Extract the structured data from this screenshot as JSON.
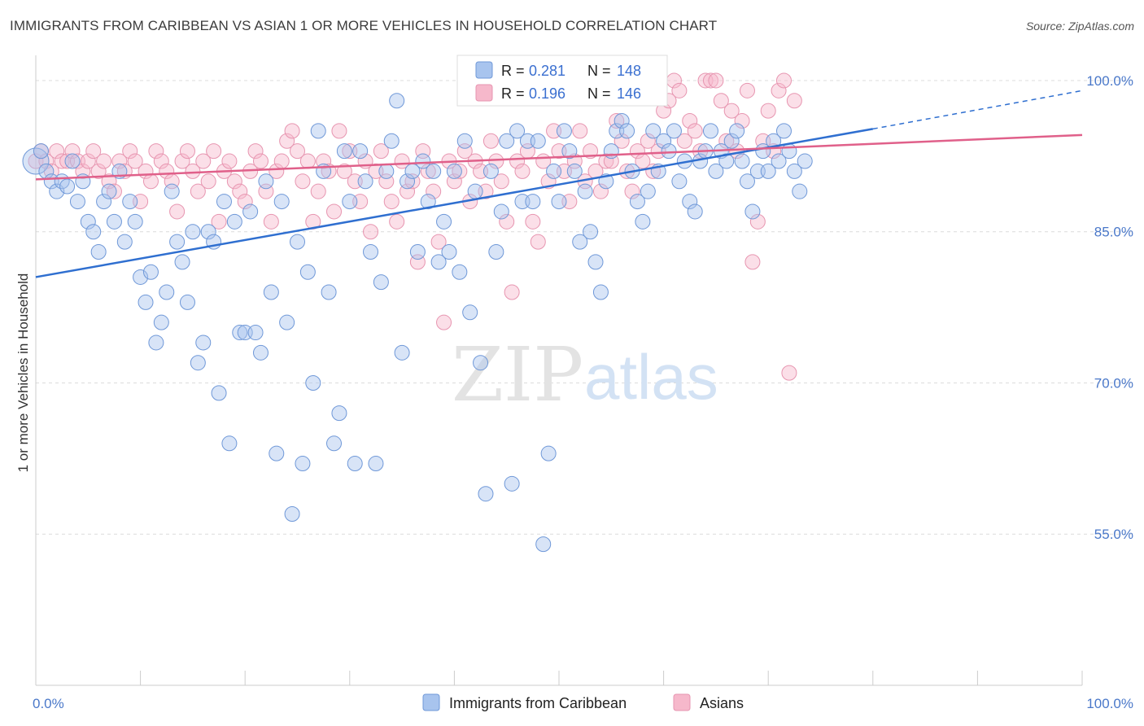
{
  "header": {
    "title": "IMMIGRANTS FROM CARIBBEAN VS ASIAN 1 OR MORE VEHICLES IN HOUSEHOLD CORRELATION CHART",
    "source": "Source: ZipAtlas.com"
  },
  "watermark": {
    "zip": "ZIP",
    "atlas": "atlas"
  },
  "colors": {
    "blue_fill": "#a8c4ee",
    "blue_stroke": "#6f98d8",
    "blue_line": "#2f6fd0",
    "pink_fill": "#f6b8cb",
    "pink_stroke": "#e795b0",
    "pink_line": "#e0608a",
    "grid": "#dcdcdc",
    "tick_text": "#4a78c9"
  },
  "chart_data": {
    "type": "scatter",
    "ylabel": "1 or more Vehicles in Household",
    "xlim": [
      0,
      100
    ],
    "ylim": [
      40,
      102.5
    ],
    "x_tick_labels": [
      "0.0%",
      "100.0%"
    ],
    "y_ticks": [
      {
        "value": 100,
        "label": "100.0%"
      },
      {
        "value": 85,
        "label": "85.0%"
      },
      {
        "value": 70,
        "label": "70.0%"
      },
      {
        "value": 55,
        "label": "55.0%"
      }
    ],
    "legend": [
      {
        "r_label": "R =",
        "r_value": "0.281",
        "n_label": "N =",
        "n_value": "148"
      },
      {
        "r_label": "R =",
        "r_value": "0.196",
        "n_label": "N =",
        "n_value": "146"
      }
    ],
    "series": [
      {
        "name": "Immigrants from Caribbean",
        "trend": {
          "x0": 0,
          "y0": 80.5,
          "x1": 80,
          "y1": 95.2,
          "dash_to_x": 100,
          "dash_to_y": 99.0
        },
        "points": [
          [
            0,
            92
          ],
          [
            0.5,
            93
          ],
          [
            1,
            91
          ],
          [
            1.5,
            90
          ],
          [
            2,
            89
          ],
          [
            2.5,
            90
          ],
          [
            3,
            89.5
          ],
          [
            3.5,
            92
          ],
          [
            4,
            88
          ],
          [
            4.5,
            90
          ],
          [
            5,
            86
          ],
          [
            5.5,
            85
          ],
          [
            6,
            83
          ],
          [
            6.5,
            88
          ],
          [
            7,
            89
          ],
          [
            7.5,
            86
          ],
          [
            8,
            91
          ],
          [
            8.5,
            84
          ],
          [
            9,
            88
          ],
          [
            9.5,
            86
          ],
          [
            10,
            80.5
          ],
          [
            10.5,
            78
          ],
          [
            11,
            81
          ],
          [
            11.5,
            74
          ],
          [
            12,
            76
          ],
          [
            12.5,
            79
          ],
          [
            13,
            89
          ],
          [
            13.5,
            84
          ],
          [
            14,
            82
          ],
          [
            14.5,
            78
          ],
          [
            15,
            85
          ],
          [
            15.5,
            72
          ],
          [
            16,
            74
          ],
          [
            16.5,
            85
          ],
          [
            17,
            84
          ],
          [
            17.5,
            69
          ],
          [
            18,
            88
          ],
          [
            18.5,
            64
          ],
          [
            19,
            86
          ],
          [
            19.5,
            75
          ],
          [
            20,
            75
          ],
          [
            20.5,
            87
          ],
          [
            21,
            75
          ],
          [
            21.5,
            73
          ],
          [
            22,
            90
          ],
          [
            22.5,
            79
          ],
          [
            23,
            63
          ],
          [
            23.5,
            88
          ],
          [
            24,
            76
          ],
          [
            24.5,
            57
          ],
          [
            25,
            84
          ],
          [
            25.5,
            62
          ],
          [
            26,
            81
          ],
          [
            26.5,
            70
          ],
          [
            27,
            95
          ],
          [
            27.5,
            91
          ],
          [
            28,
            79
          ],
          [
            28.5,
            64
          ],
          [
            29,
            67
          ],
          [
            29.5,
            93
          ],
          [
            30,
            88
          ],
          [
            30.5,
            62
          ],
          [
            31,
            93
          ],
          [
            31.5,
            90
          ],
          [
            32,
            83
          ],
          [
            32.5,
            62
          ],
          [
            33,
            80
          ],
          [
            33.5,
            91
          ],
          [
            34,
            94
          ],
          [
            34.5,
            98
          ],
          [
            35,
            73
          ],
          [
            35.5,
            90
          ],
          [
            36,
            91
          ],
          [
            36.5,
            83
          ],
          [
            37,
            92
          ],
          [
            37.5,
            88
          ],
          [
            38,
            91
          ],
          [
            38.5,
            82
          ],
          [
            39,
            86
          ],
          [
            39.5,
            83
          ],
          [
            40,
            91
          ],
          [
            40.5,
            81
          ],
          [
            41,
            94
          ],
          [
            41.5,
            77
          ],
          [
            42,
            89
          ],
          [
            42.5,
            72
          ],
          [
            43,
            59
          ],
          [
            43.5,
            91
          ],
          [
            44,
            83
          ],
          [
            44.5,
            87
          ],
          [
            45,
            94
          ],
          [
            45.5,
            60
          ],
          [
            46,
            95
          ],
          [
            46.5,
            88
          ],
          [
            47,
            94
          ],
          [
            47.5,
            88
          ],
          [
            48,
            94
          ],
          [
            48.5,
            54
          ],
          [
            49,
            63
          ],
          [
            49.5,
            91
          ],
          [
            50,
            88
          ],
          [
            50.5,
            95
          ],
          [
            51,
            93
          ],
          [
            51.5,
            91
          ],
          [
            52,
            84
          ],
          [
            52.5,
            89
          ],
          [
            53,
            85
          ],
          [
            53.5,
            82
          ],
          [
            54,
            79
          ],
          [
            54.5,
            90
          ],
          [
            55,
            93
          ],
          [
            55.5,
            95
          ],
          [
            56,
            96
          ],
          [
            56.5,
            95
          ],
          [
            57,
            91
          ],
          [
            57.5,
            88
          ],
          [
            58,
            86
          ],
          [
            58.5,
            89
          ],
          [
            59,
            95
          ],
          [
            59.5,
            91
          ],
          [
            60,
            94
          ],
          [
            60.5,
            93
          ],
          [
            61,
            95
          ],
          [
            61.5,
            90
          ],
          [
            62,
            92
          ],
          [
            62.5,
            88
          ],
          [
            63,
            87
          ],
          [
            63.5,
            92
          ],
          [
            64,
            93
          ],
          [
            64.5,
            95
          ],
          [
            65,
            91
          ],
          [
            65.5,
            93
          ],
          [
            66,
            92
          ],
          [
            66.5,
            94
          ],
          [
            67,
            95
          ],
          [
            67.5,
            92
          ],
          [
            68,
            90
          ],
          [
            68.5,
            87
          ],
          [
            69,
            91
          ],
          [
            69.5,
            93
          ],
          [
            70,
            91
          ],
          [
            70.5,
            94
          ],
          [
            71,
            92
          ],
          [
            71.5,
            95
          ],
          [
            72,
            93
          ],
          [
            72.5,
            91
          ],
          [
            73,
            89
          ],
          [
            73.5,
            92
          ]
        ]
      },
      {
        "name": "Asians",
        "trend": {
          "x0": 0,
          "y0": 90.2,
          "x1": 100,
          "y1": 94.6
        },
        "points": [
          [
            0,
            92
          ],
          [
            0.5,
            93
          ],
          [
            1,
            92
          ],
          [
            1.5,
            91
          ],
          [
            2,
            93
          ],
          [
            2.5,
            92
          ],
          [
            3,
            92
          ],
          [
            3.5,
            93
          ],
          [
            4,
            92
          ],
          [
            4.5,
            91
          ],
          [
            5,
            92
          ],
          [
            5.5,
            93
          ],
          [
            6,
            91
          ],
          [
            6.5,
            92
          ],
          [
            7,
            90
          ],
          [
            7.5,
            89
          ],
          [
            8,
            92
          ],
          [
            8.5,
            91
          ],
          [
            9,
            93
          ],
          [
            9.5,
            92
          ],
          [
            10,
            88
          ],
          [
            10.5,
            91
          ],
          [
            11,
            90
          ],
          [
            11.5,
            93
          ],
          [
            12,
            92
          ],
          [
            12.5,
            91
          ],
          [
            13,
            90
          ],
          [
            13.5,
            87
          ],
          [
            14,
            92
          ],
          [
            14.5,
            93
          ],
          [
            15,
            91
          ],
          [
            15.5,
            89
          ],
          [
            16,
            92
          ],
          [
            16.5,
            90
          ],
          [
            17,
            93
          ],
          [
            17.5,
            86
          ],
          [
            18,
            91
          ],
          [
            18.5,
            92
          ],
          [
            19,
            90
          ],
          [
            19.5,
            89
          ],
          [
            20,
            88
          ],
          [
            20.5,
            91
          ],
          [
            21,
            93
          ],
          [
            21.5,
            92
          ],
          [
            22,
            89
          ],
          [
            22.5,
            86
          ],
          [
            23,
            91
          ],
          [
            23.5,
            92
          ],
          [
            24,
            94
          ],
          [
            24.5,
            95
          ],
          [
            25,
            93
          ],
          [
            25.5,
            90
          ],
          [
            26,
            92
          ],
          [
            26.5,
            86
          ],
          [
            27,
            89
          ],
          [
            27.5,
            92
          ],
          [
            28,
            91
          ],
          [
            28.5,
            87
          ],
          [
            29,
            95
          ],
          [
            29.5,
            91
          ],
          [
            30,
            93
          ],
          [
            30.5,
            90
          ],
          [
            31,
            88
          ],
          [
            31.5,
            92
          ],
          [
            32,
            85
          ],
          [
            32.5,
            91
          ],
          [
            33,
            93
          ],
          [
            33.5,
            90
          ],
          [
            34,
            88
          ],
          [
            34.5,
            86
          ],
          [
            35,
            92
          ],
          [
            35.5,
            89
          ],
          [
            36,
            90
          ],
          [
            36.5,
            82
          ],
          [
            37,
            93
          ],
          [
            37.5,
            91
          ],
          [
            38,
            89
          ],
          [
            38.5,
            84
          ],
          [
            39,
            76
          ],
          [
            39.5,
            92
          ],
          [
            40,
            90
          ],
          [
            40.5,
            91
          ],
          [
            41,
            93
          ],
          [
            41.5,
            88
          ],
          [
            42,
            92
          ],
          [
            42.5,
            91
          ],
          [
            43,
            89
          ],
          [
            43.5,
            94
          ],
          [
            44,
            92
          ],
          [
            44.5,
            90
          ],
          [
            45,
            86
          ],
          [
            45.5,
            79
          ],
          [
            46,
            92
          ],
          [
            46.5,
            91
          ],
          [
            47,
            93
          ],
          [
            47.5,
            86
          ],
          [
            48,
            84
          ],
          [
            48.5,
            92
          ],
          [
            49,
            90
          ],
          [
            49.5,
            95
          ],
          [
            50,
            93
          ],
          [
            50.5,
            91
          ],
          [
            51,
            88
          ],
          [
            51.5,
            92
          ],
          [
            52,
            95
          ],
          [
            52.5,
            90
          ],
          [
            53,
            93
          ],
          [
            53.5,
            91
          ],
          [
            54,
            89
          ],
          [
            54.5,
            92
          ],
          [
            55,
            92
          ],
          [
            55.5,
            96
          ],
          [
            56,
            94
          ],
          [
            56.5,
            91
          ],
          [
            57,
            89
          ],
          [
            57.5,
            93
          ],
          [
            58,
            92
          ],
          [
            58.5,
            94
          ],
          [
            59,
            91
          ],
          [
            59.5,
            93
          ],
          [
            60,
            97
          ],
          [
            60.5,
            98
          ],
          [
            61,
            100
          ],
          [
            61.5,
            99
          ],
          [
            62,
            94
          ],
          [
            62.5,
            96
          ],
          [
            63,
            95
          ],
          [
            63.5,
            93
          ],
          [
            64,
            100
          ],
          [
            64.5,
            100
          ],
          [
            65,
            100
          ],
          [
            65.5,
            98
          ],
          [
            66,
            94
          ],
          [
            66.5,
            97
          ],
          [
            67,
            93
          ],
          [
            67.5,
            96
          ],
          [
            68,
            99
          ],
          [
            68.5,
            82
          ],
          [
            69,
            86
          ],
          [
            69.5,
            94
          ],
          [
            70,
            97
          ],
          [
            70.5,
            93
          ],
          [
            71,
            99
          ],
          [
            71.5,
            100
          ],
          [
            72,
            71
          ],
          [
            72.5,
            98
          ]
        ]
      }
    ],
    "bottom_legend": [
      {
        "label": "Immigrants from Caribbean"
      },
      {
        "label": "Asians"
      }
    ]
  }
}
